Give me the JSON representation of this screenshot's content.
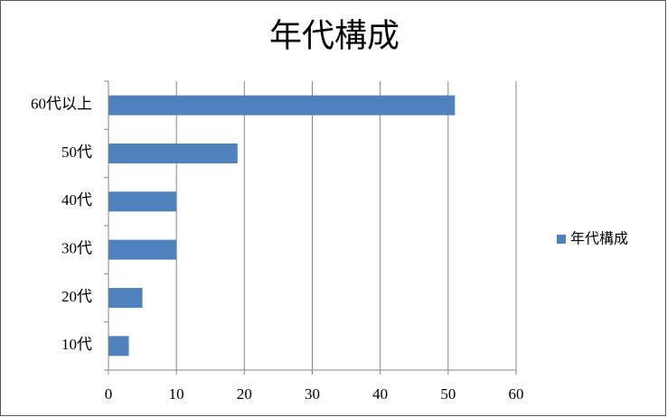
{
  "chart_data": {
    "type": "barh",
    "title": "年代構成",
    "categories": [
      "10代",
      "20代",
      "30代",
      "40代",
      "50代",
      "60代以上"
    ],
    "series": [
      {
        "name": "年代構成",
        "color": "#4f81bd",
        "values": [
          3,
          5,
          10,
          10,
          19,
          51
        ]
      }
    ],
    "xlim": [
      0,
      60
    ],
    "xticks": [
      0,
      10,
      20,
      30,
      40,
      50,
      60
    ],
    "grid": true,
    "legend": "right"
  }
}
